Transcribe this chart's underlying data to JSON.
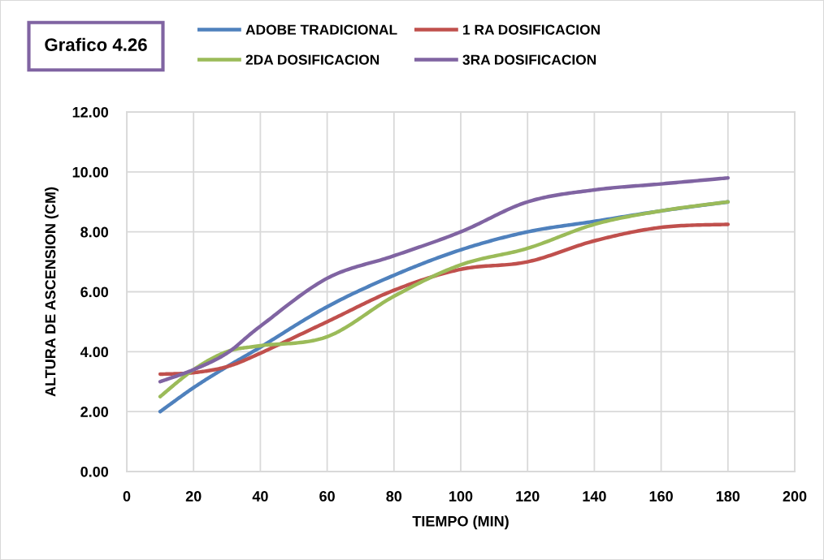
{
  "chart_data": {
    "type": "line",
    "title": "Grafico 4.26",
    "xlabel": "TIEMPO (MIN)",
    "ylabel": "ALTURA DE ASCENSION (CM)",
    "x": [
      10,
      20,
      30,
      40,
      60,
      80,
      100,
      120,
      140,
      160,
      180
    ],
    "series": [
      {
        "name": "ADOBE TRADICIONAL",
        "color": "#4f81bd",
        "values": [
          2.0,
          2.8,
          3.5,
          4.15,
          5.5,
          6.55,
          7.4,
          8.0,
          8.35,
          8.7,
          9.0
        ]
      },
      {
        "name": "1 RA DOSIFICACION",
        "color": "#c0504d",
        "values": [
          3.25,
          3.3,
          3.5,
          3.95,
          5.0,
          6.05,
          6.75,
          7.0,
          7.7,
          8.15,
          8.25
        ]
      },
      {
        "name": "2DA DOSIFICACION",
        "color": "#9bbb59",
        "values": [
          2.5,
          3.4,
          4.0,
          4.2,
          4.5,
          5.85,
          6.9,
          7.45,
          8.25,
          8.7,
          9.0
        ]
      },
      {
        "name": "3RA DOSIFICACION",
        "color": "#8064a2",
        "values": [
          3.0,
          3.4,
          3.95,
          4.85,
          6.45,
          7.2,
          8.0,
          9.0,
          9.4,
          9.6,
          9.8
        ]
      }
    ],
    "xlim": [
      0,
      200
    ],
    "xticks": [
      0,
      20,
      40,
      60,
      80,
      100,
      120,
      140,
      160,
      180,
      200
    ],
    "ylim": [
      0,
      12
    ],
    "yticks": [
      {
        "value": 0,
        "label": "0.00"
      },
      {
        "value": 2,
        "label": "2.00"
      },
      {
        "value": 4,
        "label": "4.00"
      },
      {
        "value": 6,
        "label": "6.00"
      },
      {
        "value": 8,
        "label": "8.00"
      },
      {
        "value": 10,
        "label": "10.00"
      },
      {
        "value": 12,
        "label": "12.00"
      }
    ],
    "grid": true,
    "legend": "top"
  }
}
